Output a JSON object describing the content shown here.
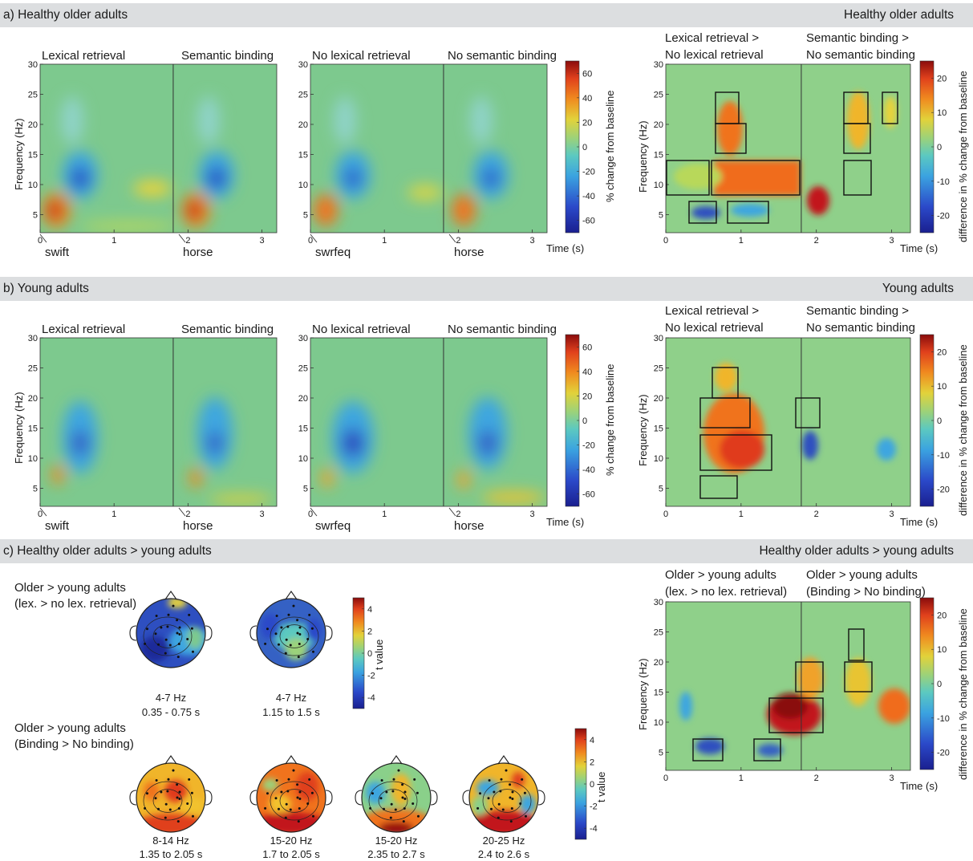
{
  "panels": {
    "a": {
      "label": "a) Healthy older adults",
      "right_label": "Healthy older adults"
    },
    "b": {
      "label": "b) Young adults",
      "right_label": "Young adults"
    },
    "c": {
      "label": "c) Healthy older adults > young adults",
      "right_label": "Healthy older adults > young adults"
    }
  },
  "tfr": {
    "titles": [
      "Lexical retrieval",
      "Semantic binding",
      "No lexical retrieval",
      "No semantic binding"
    ],
    "words_left": [
      "swift",
      "horse"
    ],
    "words_right": [
      "swrfeq",
      "horse"
    ],
    "ylabel": "Frequency (Hz)",
    "xlabel": "Time (s)",
    "yticks": [
      "5",
      "10",
      "15",
      "20",
      "25",
      "30"
    ],
    "xticks": [
      "0",
      "1",
      "2",
      "3"
    ],
    "colorbar_label": "% change from baseline",
    "colorbar_ticks": [
      "60",
      "40",
      "20",
      "0",
      "-20",
      "-40",
      "-60"
    ]
  },
  "diff": {
    "title_left": [
      "Lexical retrieval >",
      "No lexical retrieval"
    ],
    "title_right": [
      "Semantic binding >",
      "No semantic binding"
    ],
    "title_left_c": [
      "Older > young adults",
      "(lex. > no lex. retrieval)"
    ],
    "title_right_c": [
      "Older > young adults",
      "(Binding > No binding)"
    ],
    "ylabel": "Frequency (Hz)",
    "xlabel": "Time (s)",
    "colorbar_label": "difference in % change from baseline",
    "colorbar_ticks": [
      "20",
      "10",
      "0",
      "-10",
      "-20"
    ]
  },
  "topo": {
    "row1_title": [
      "Older > young adults",
      "(lex. > no lex. retrieval)"
    ],
    "row2_title": [
      "Older > young adults",
      "(Binding > No binding)"
    ],
    "colorbar_label": "t value",
    "colorbar_ticks": [
      "4",
      "2",
      "0",
      "-2",
      "-4"
    ],
    "row1": [
      {
        "band": "4-7 Hz",
        "window": "0.35 - 0.75 s"
      },
      {
        "band": "4-7 Hz",
        "window": "1.15 to 1.5 s"
      }
    ],
    "row2": [
      {
        "band": "8-14 Hz",
        "window": "1.35 to 2.05 s"
      },
      {
        "band": "15-20 Hz",
        "window": "1.7 to 2.05 s"
      },
      {
        "band": "15-20 Hz",
        "window": "2.35 to 2.7 s"
      },
      {
        "band": "20-25 Hz",
        "window": "2.4 to 2.6 s"
      }
    ]
  },
  "colors": {
    "jet": [
      "#1a1f8f",
      "#2b49c9",
      "#3ba3e0",
      "#5cc9c0",
      "#8ad08a",
      "#c4d84a",
      "#f2c22e",
      "#f08a1f",
      "#e0401c",
      "#9a1010"
    ],
    "band": "#dcdee0"
  }
}
